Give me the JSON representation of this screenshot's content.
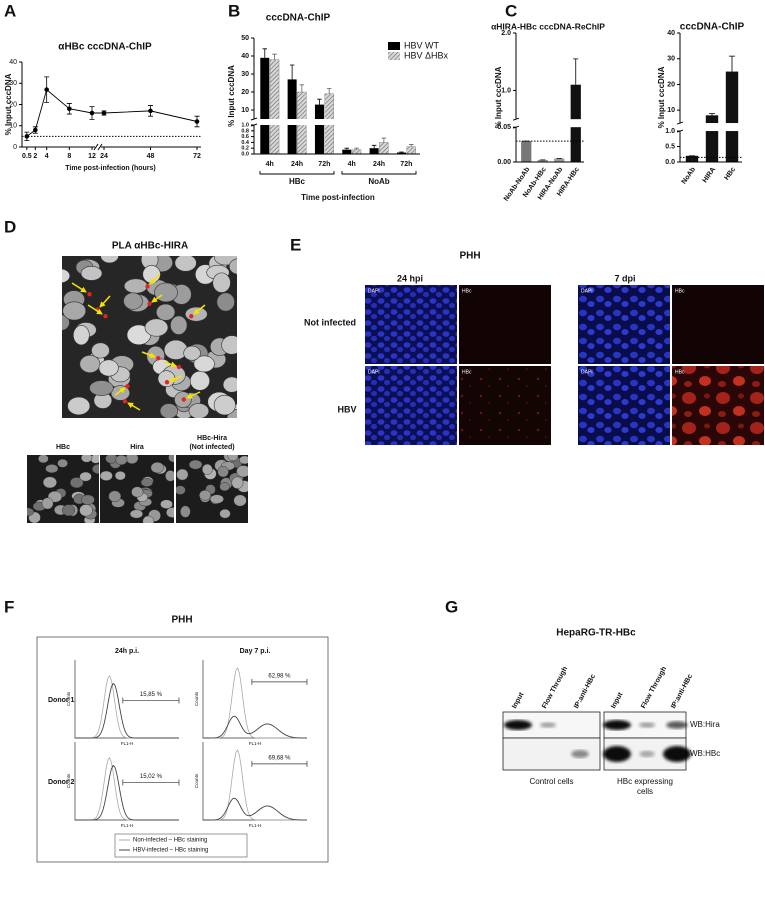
{
  "panel_labels": [
    "A",
    "B",
    "C",
    "D",
    "E",
    "F",
    "G"
  ],
  "chart_data": [
    {
      "type": "line",
      "title": "αHBc cccDNA-ChIP",
      "ylabel": "% Input cccDNA",
      "xlabel": "Time post-infection (hours)",
      "x": [
        0.5,
        2,
        4,
        8,
        12,
        24,
        48,
        72
      ],
      "values": [
        5,
        8,
        27,
        18,
        16,
        16,
        17,
        12
      ],
      "errors": [
        2,
        1.5,
        6,
        2.5,
        3,
        1,
        2.5,
        2.5
      ],
      "xlim": [
        0,
        72
      ],
      "xbreak": [
        12,
        24
      ],
      "xticks": [
        0.5,
        2,
        4,
        8,
        12,
        24,
        48,
        72
      ],
      "ylim": [
        0,
        40
      ],
      "yticks": [
        0,
        10,
        20,
        30,
        40
      ],
      "threshold": 5,
      "color": "#000000"
    },
    {
      "type": "bar",
      "title": "cccDNA-ChIP",
      "ylabel": "% Input cccDNA",
      "xlabel": "Time post-infection",
      "categories": [
        "4h",
        "24h",
        "72h",
        "4h",
        "24h",
        "72h"
      ],
      "groups": [
        "HBc",
        "NoAb"
      ],
      "series": [
        {
          "name": "HBV WT",
          "color": "#000000",
          "values": [
            39,
            27,
            13,
            0.15,
            0.2,
            0.05
          ],
          "errors": [
            5,
            8,
            3,
            0.05,
            0.1,
            0.02
          ]
        },
        {
          "name": "HBV ΔHBx",
          "color": "#8a8a8a",
          "pattern": "hatch",
          "values": [
            38,
            20,
            19,
            0.15,
            0.4,
            0.25
          ],
          "errors": [
            3,
            4,
            3,
            0.05,
            0.15,
            0.08
          ]
        }
      ],
      "ylim": [
        0,
        50
      ],
      "ybreak": [
        1,
        5
      ],
      "yticks": [
        {
          "value": 0,
          "label": "0.0"
        },
        0.2,
        0.4,
        0.6,
        0.8,
        {
          "value": 1,
          "label": "1.0"
        },
        10,
        20,
        30,
        40,
        50
      ],
      "legend": "top-right"
    },
    {
      "type": "bar",
      "title": "αHIRA-HBc cccDNA-ReChIP",
      "ylabel": "% Input cccDNA",
      "categories": [
        "NoAb-NoAb",
        "NoAb-HBc",
        "HIRA-NoAb",
        "HIRA-HBc"
      ],
      "values": [
        0.03,
        0.003,
        0.005,
        1.1
      ],
      "errors": [
        0,
        0,
        0,
        0.45
      ],
      "colors": [
        "#777777",
        "#999999",
        "#999999",
        "#111111"
      ],
      "ylim": [
        0,
        2
      ],
      "ybreak": [
        0.05,
        0.5
      ],
      "yticks": [
        {
          "value": 0,
          "label": "0.00"
        },
        0.05,
        {
          "value": 1,
          "label": "1.0"
        },
        {
          "value": 2,
          "label": "2.0"
        }
      ],
      "threshold": 0.03
    },
    {
      "type": "bar",
      "title": "cccDNA-ChIP",
      "ylabel": "% Input cccDNA",
      "categories": [
        "NoAb",
        "HIRA",
        "HBc"
      ],
      "values": [
        0.2,
        8,
        25
      ],
      "errors": [
        0,
        0.7,
        6
      ],
      "colors": [
        "#111111",
        "#111111",
        "#111111"
      ],
      "ylim": [
        0,
        40
      ],
      "ybreak": [
        1,
        5
      ],
      "yticks": [
        {
          "value": 0,
          "label": "0.0"
        },
        0.5,
        {
          "value": 1,
          "label": "1.0"
        },
        10,
        20,
        30,
        40
      ],
      "threshold": 0.15
    }
  ],
  "panel_d": {
    "title": "PLA αHBc-HIRA",
    "controls": [
      [
        "HBc"
      ],
      [
        "Hira"
      ],
      [
        "HBc-Hira",
        "(Not infected)"
      ]
    ]
  },
  "panel_e": {
    "title": "PHH",
    "columns": [
      "24 hpi",
      "7 dpi"
    ],
    "rows": [
      "Not infected",
      "HBV"
    ],
    "channels": [
      "DAPI",
      "HBc"
    ]
  },
  "panel_f": {
    "title": "PHH",
    "columns": [
      "24h p.i.",
      "Day 7 p.i."
    ],
    "rows": [
      "Donor 1",
      "Donor 2"
    ],
    "gates": [
      [
        "15,85 %",
        "62,98 %"
      ],
      [
        "15,02 %",
        "69,68 %"
      ]
    ],
    "x_label": "FL1-H",
    "y_label": "Counts",
    "legend": [
      "Non-infected – HBc staining",
      "HBV-infected – HBc staining"
    ]
  },
  "panel_g": {
    "title": "HepaRG-TR-HBc",
    "lanes": [
      "Input",
      "Flow Through",
      "IP:anti-HBc"
    ],
    "blots": [
      "WB:Hira",
      "WB:HBc"
    ],
    "groups": [
      [
        "Control cells"
      ],
      [
        "HBc expressing",
        "cells"
      ]
    ]
  }
}
